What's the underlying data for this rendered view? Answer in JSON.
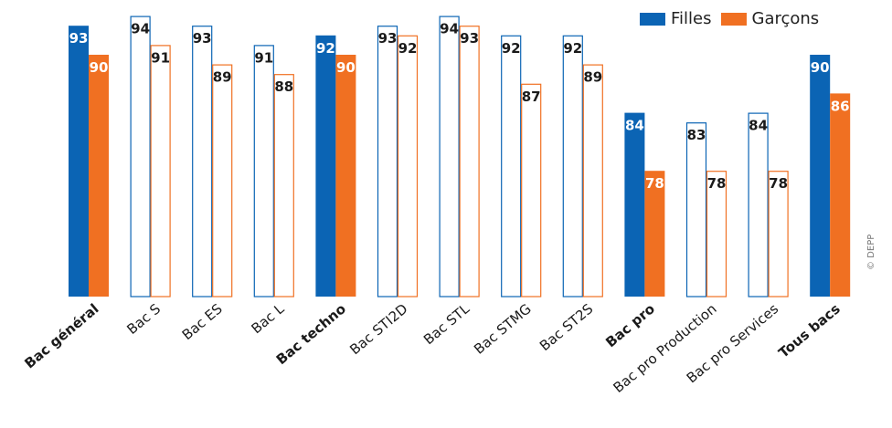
{
  "chart_data": {
    "type": "bar",
    "categories": [
      "Bac général",
      "Bac S",
      "Bac ES",
      "Bac L",
      "Bac techno",
      "Bac STI2D",
      "Bac STL",
      "Bac STMG",
      "Bac ST2S",
      "Bac pro",
      "Bac pro Production",
      "Bac pro Services",
      "Tous bacs"
    ],
    "bold_categories": [
      "Bac général",
      "Bac techno",
      "Bac pro",
      "Tous bacs"
    ],
    "series": [
      {
        "name": "Filles",
        "values": [
          93,
          94,
          93,
          91,
          92,
          93,
          94,
          92,
          92,
          84,
          83,
          84,
          90
        ]
      },
      {
        "name": "Garçons",
        "values": [
          90,
          91,
          89,
          88,
          90,
          92,
          93,
          87,
          89,
          78,
          78,
          78,
          86
        ]
      }
    ],
    "ylim": [
      65,
      96
    ],
    "grid": false,
    "legend": "top-right",
    "colors": {
      "Filles": "#0b64b4",
      "Garçons": "#f07022"
    }
  },
  "credit": "© DEPP"
}
